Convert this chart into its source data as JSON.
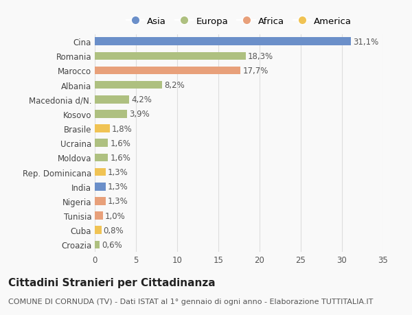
{
  "categories": [
    "Croazia",
    "Cuba",
    "Tunisia",
    "Nigeria",
    "India",
    "Rep. Dominicana",
    "Moldova",
    "Ucraina",
    "Brasile",
    "Kosovo",
    "Macedonia d/N.",
    "Albania",
    "Marocco",
    "Romania",
    "Cina"
  ],
  "values": [
    0.6,
    0.8,
    1.0,
    1.3,
    1.3,
    1.3,
    1.6,
    1.6,
    1.8,
    3.9,
    4.2,
    8.2,
    17.7,
    18.3,
    31.1
  ],
  "labels": [
    "0,6%",
    "0,8%",
    "1,0%",
    "1,3%",
    "1,3%",
    "1,3%",
    "1,6%",
    "1,6%",
    "1,8%",
    "3,9%",
    "4,2%",
    "8,2%",
    "17,7%",
    "18,3%",
    "31,1%"
  ],
  "colors": [
    "#aec080",
    "#f0c354",
    "#e8a07a",
    "#e8a07a",
    "#6b8fc9",
    "#f0c354",
    "#aec080",
    "#aec080",
    "#f0c354",
    "#aec080",
    "#aec080",
    "#aec080",
    "#e8a07a",
    "#aec080",
    "#6b8fc9"
  ],
  "legend": [
    {
      "label": "Asia",
      "color": "#6b8fc9"
    },
    {
      "label": "Europa",
      "color": "#aec080"
    },
    {
      "label": "Africa",
      "color": "#e8a07a"
    },
    {
      "label": "America",
      "color": "#f0c354"
    }
  ],
  "title": "Cittadini Stranieri per Cittadinanza",
  "subtitle": "COMUNE DI CORNUDA (TV) - Dati ISTAT al 1° gennaio di ogni anno - Elaborazione TUTTITALIA.IT",
  "xlim": [
    0,
    35
  ],
  "xticks": [
    0,
    5,
    10,
    15,
    20,
    25,
    30,
    35
  ],
  "background_color": "#f9f9f9",
  "grid_color": "#dddddd",
  "title_fontsize": 11,
  "subtitle_fontsize": 8,
  "label_fontsize": 8.5,
  "tick_fontsize": 8.5,
  "legend_fontsize": 9.5
}
